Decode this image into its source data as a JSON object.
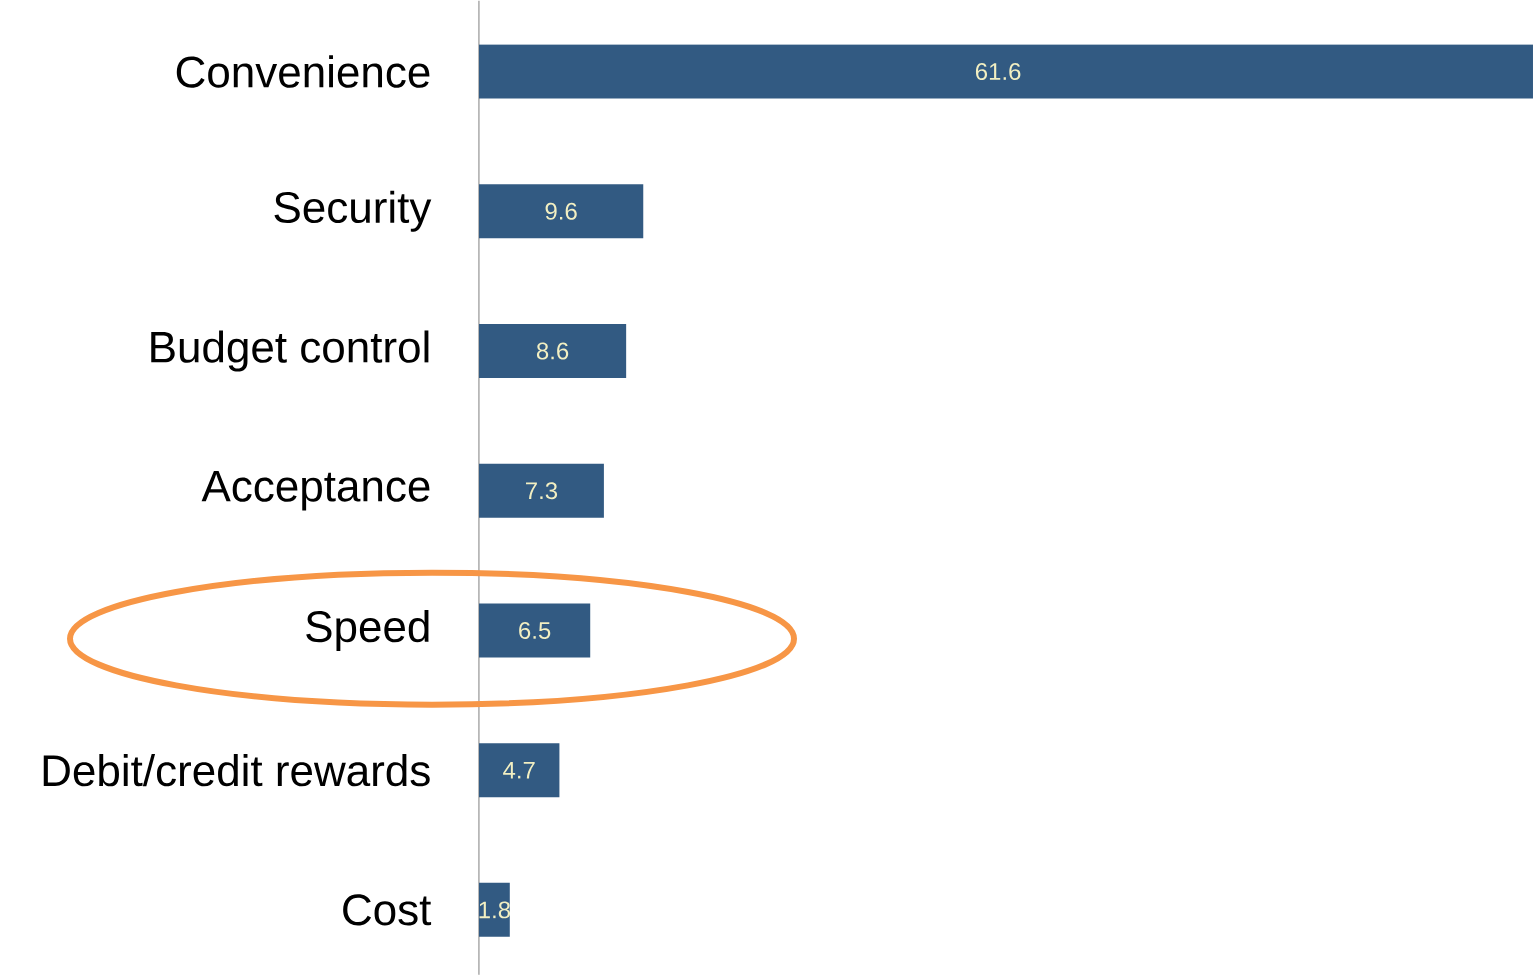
{
  "chart_data": {
    "type": "bar",
    "orientation": "horizontal",
    "categories": [
      "Convenience",
      "Security",
      "Budget control",
      "Acceptance",
      "Speed",
      "Debit/credit rewards",
      "Cost"
    ],
    "values": [
      61.6,
      9.6,
      8.6,
      7.3,
      6.5,
      4.7,
      1.8
    ],
    "color": "#325a82",
    "data_labels": true
  }
}
